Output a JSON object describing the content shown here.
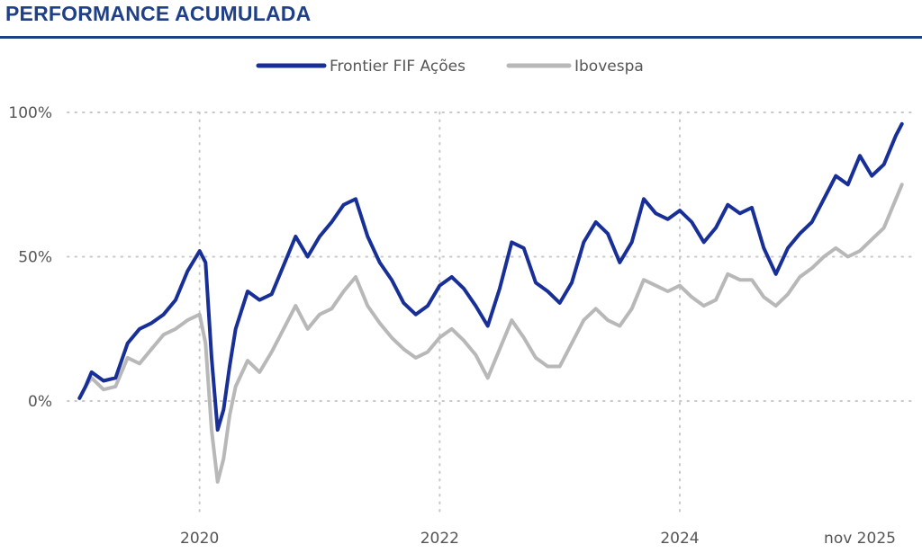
{
  "title": "PERFORMANCE ACUMULADA",
  "colors": {
    "title": "#1f3f87",
    "fund": "#172f96",
    "index": "#b8b8b8",
    "grid": "#c8c8c8",
    "text": "#555555"
  },
  "chart_data": {
    "type": "line",
    "title": "PERFORMANCE ACUMULADA",
    "xlabel": "",
    "ylabel": "",
    "x_unit": "year",
    "xlim": [
      2018.9,
      2025.95
    ],
    "ylim": [
      -30,
      100
    ],
    "grid": true,
    "legend_position": "top-center",
    "y_ticks": [
      0,
      50,
      100
    ],
    "y_tick_labels": [
      "0%",
      "50%",
      "100%"
    ],
    "x_ticks": [
      2020,
      2022,
      2024,
      2025.83
    ],
    "x_tick_labels": [
      "2020",
      "2022",
      "2024",
      "nov 2025"
    ],
    "series": [
      {
        "name": "Frontier FIF Ações",
        "x": [
          2019.0,
          2019.05,
          2019.1,
          2019.2,
          2019.3,
          2019.4,
          2019.5,
          2019.6,
          2019.7,
          2019.8,
          2019.9,
          2020.0,
          2020.05,
          2020.1,
          2020.15,
          2020.2,
          2020.25,
          2020.3,
          2020.4,
          2020.5,
          2020.6,
          2020.7,
          2020.8,
          2020.9,
          2021.0,
          2021.1,
          2021.2,
          2021.3,
          2021.4,
          2021.5,
          2021.6,
          2021.7,
          2021.8,
          2021.9,
          2022.0,
          2022.1,
          2022.2,
          2022.3,
          2022.4,
          2022.5,
          2022.6,
          2022.7,
          2022.8,
          2022.9,
          2023.0,
          2023.1,
          2023.2,
          2023.3,
          2023.4,
          2023.5,
          2023.6,
          2023.7,
          2023.8,
          2023.9,
          2024.0,
          2024.1,
          2024.2,
          2024.3,
          2024.4,
          2024.5,
          2024.6,
          2024.7,
          2024.8,
          2024.9,
          2025.0,
          2025.1,
          2025.2,
          2025.3,
          2025.4,
          2025.5,
          2025.6,
          2025.7,
          2025.8,
          2025.85
        ],
        "values": [
          1,
          5,
          10,
          7,
          8,
          20,
          25,
          27,
          30,
          35,
          45,
          52,
          48,
          15,
          -10,
          -3,
          12,
          25,
          38,
          35,
          37,
          47,
          57,
          50,
          57,
          62,
          68,
          70,
          57,
          48,
          42,
          34,
          30,
          33,
          40,
          43,
          39,
          33,
          26,
          39,
          55,
          53,
          41,
          38,
          34,
          41,
          55,
          62,
          58,
          48,
          55,
          70,
          65,
          63,
          66,
          62,
          55,
          60,
          68,
          65,
          67,
          53,
          44,
          53,
          58,
          62,
          70,
          78,
          75,
          85,
          78,
          82,
          92,
          96
        ]
      },
      {
        "name": "Ibovespa",
        "x": [
          2019.0,
          2019.05,
          2019.1,
          2019.2,
          2019.3,
          2019.4,
          2019.5,
          2019.6,
          2019.7,
          2019.8,
          2019.9,
          2020.0,
          2020.05,
          2020.1,
          2020.15,
          2020.2,
          2020.25,
          2020.3,
          2020.4,
          2020.5,
          2020.6,
          2020.7,
          2020.8,
          2020.9,
          2021.0,
          2021.1,
          2021.2,
          2021.3,
          2021.4,
          2021.5,
          2021.6,
          2021.7,
          2021.8,
          2021.9,
          2022.0,
          2022.1,
          2022.2,
          2022.3,
          2022.4,
          2022.5,
          2022.6,
          2022.7,
          2022.8,
          2022.9,
          2023.0,
          2023.1,
          2023.2,
          2023.3,
          2023.4,
          2023.5,
          2023.6,
          2023.7,
          2023.8,
          2023.9,
          2024.0,
          2024.1,
          2024.2,
          2024.3,
          2024.4,
          2024.5,
          2024.6,
          2024.7,
          2024.8,
          2024.9,
          2025.0,
          2025.1,
          2025.2,
          2025.3,
          2025.4,
          2025.5,
          2025.6,
          2025.7,
          2025.8,
          2025.85
        ],
        "values": [
          1,
          5,
          8,
          4,
          5,
          15,
          13,
          18,
          23,
          25,
          28,
          30,
          20,
          -10,
          -28,
          -20,
          -5,
          5,
          14,
          10,
          17,
          25,
          33,
          25,
          30,
          32,
          38,
          43,
          33,
          27,
          22,
          18,
          15,
          17,
          22,
          25,
          21,
          16,
          8,
          18,
          28,
          22,
          15,
          12,
          12,
          20,
          28,
          32,
          28,
          26,
          32,
          42,
          40,
          38,
          40,
          36,
          33,
          35,
          44,
          42,
          42,
          36,
          33,
          37,
          43,
          46,
          50,
          53,
          50,
          52,
          56,
          60,
          70,
          75
        ]
      }
    ]
  }
}
